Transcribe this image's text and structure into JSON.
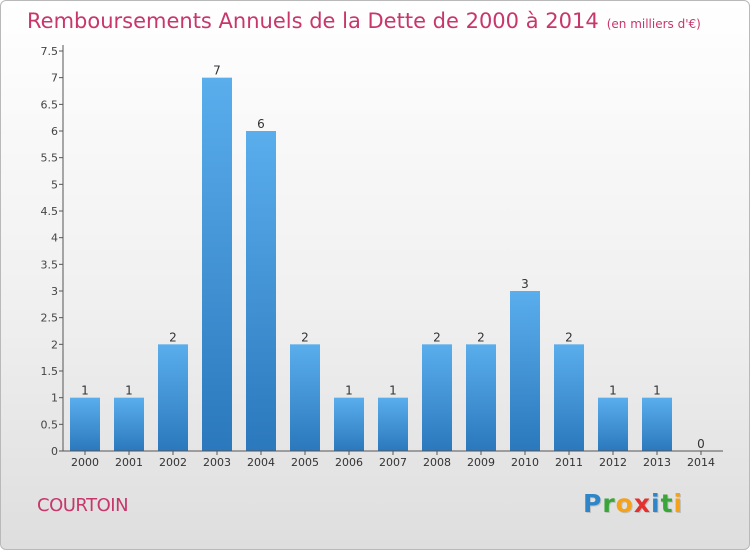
{
  "header": {
    "title": "Remboursements Annuels de la Dette de 2000 à 2014",
    "unit": "(en milliers d'€)"
  },
  "footer": {
    "commune": "COURTOIN",
    "logo": {
      "letters": [
        "P",
        "r",
        "o",
        "x",
        "i",
        "t",
        "i"
      ],
      "colors": [
        "#2e86c8",
        "#3aa63a",
        "#f5a21b",
        "#e2312f",
        "#2e86c8",
        "#3aa63a",
        "#f5a21b"
      ]
    }
  },
  "colors": {
    "title": "#c8366b",
    "bar_top": "#5aaeec",
    "bar_bottom": "#2b78bd",
    "axis": "#555555"
  },
  "chart_data": {
    "type": "bar",
    "title": "Remboursements Annuels de la Dette de 2000 à 2014",
    "subtitle": "(en milliers d'€)",
    "categories": [
      "2000",
      "2001",
      "2002",
      "2003",
      "2004",
      "2005",
      "2006",
      "2007",
      "2008",
      "2009",
      "2010",
      "2011",
      "2012",
      "2013",
      "2014"
    ],
    "values": [
      1,
      1,
      2,
      7,
      6,
      2,
      1,
      1,
      2,
      2,
      3,
      2,
      1,
      1,
      0
    ],
    "data_labels": [
      "1",
      "1",
      "2",
      "7",
      "6",
      "2",
      "1",
      "1",
      "2",
      "2",
      "3",
      "2",
      "1",
      "1",
      "0"
    ],
    "ylim": [
      0,
      7.5
    ],
    "yticks": [
      0,
      0.5,
      1,
      1.5,
      2,
      2.5,
      3,
      3.5,
      4,
      4.5,
      5,
      5.5,
      6,
      6.5,
      7,
      7.5
    ],
    "ytick_labels": [
      "0",
      "0.5",
      "1",
      "1.5",
      "2",
      "2.5",
      "3",
      "3.5",
      "4",
      "4.5",
      "5",
      "5.5",
      "6",
      "6.5",
      "7",
      "7.5"
    ],
    "grid": false,
    "legend": "none"
  }
}
